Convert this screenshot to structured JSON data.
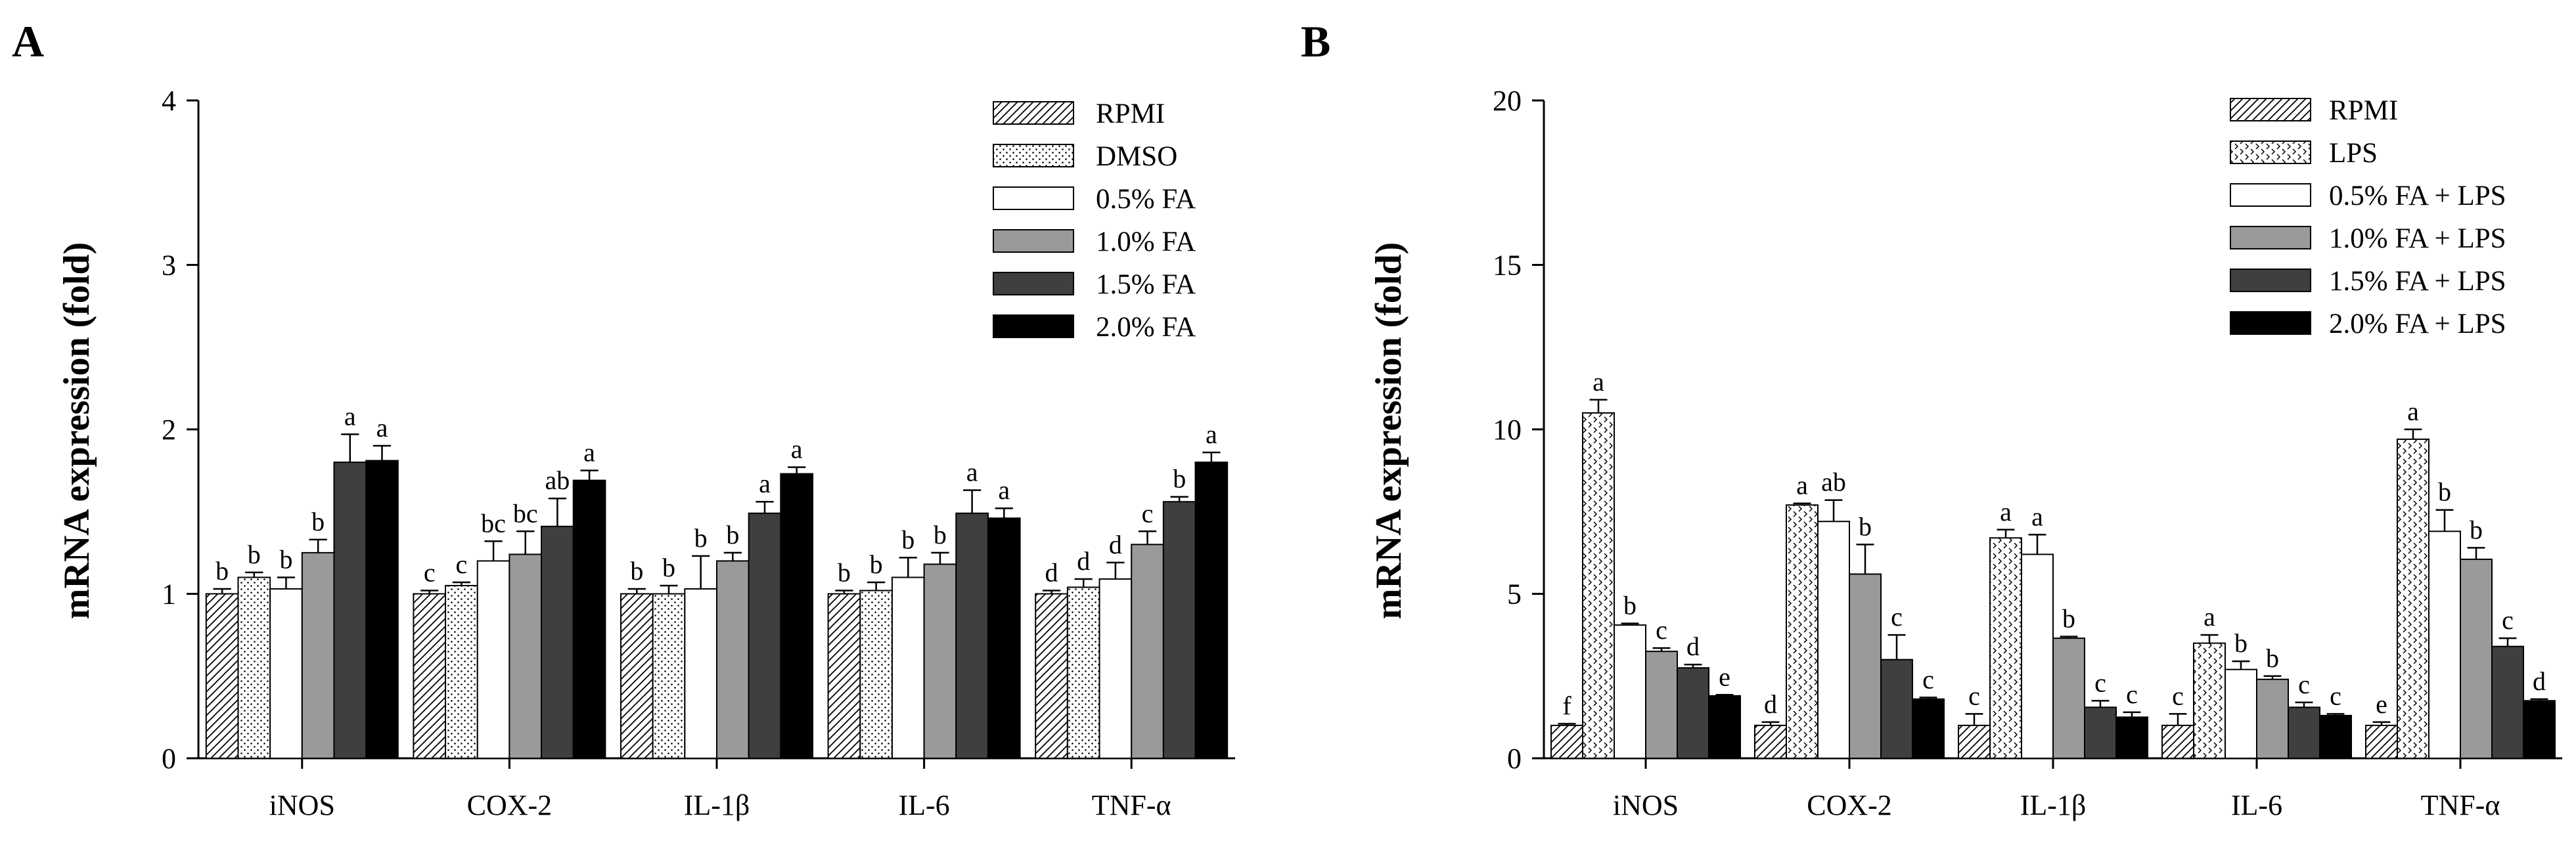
{
  "chart_data": [
    {
      "type": "bar",
      "panel": "A",
      "ylabel": "mRNA expression (fold)",
      "xlabel": "",
      "ylim": [
        0,
        4
      ],
      "yticks": [
        "0",
        "1",
        "2",
        "3",
        "4"
      ],
      "categories": [
        "iNOS",
        "COX-2",
        "IL-1β",
        "IL-6",
        "TNF-α"
      ],
      "legend_position": "top-right",
      "series": [
        {
          "name": "RPMI",
          "pattern": "diag",
          "values": [
            1.0,
            1.0,
            1.0,
            1.0,
            1.0
          ],
          "errors": [
            0.03,
            0.02,
            0.03,
            0.02,
            0.02
          ],
          "labels": [
            "b",
            "c",
            "b",
            "b",
            "d"
          ]
        },
        {
          "name": "DMSO",
          "pattern": "dots",
          "values": [
            1.1,
            1.05,
            1.0,
            1.02,
            1.04
          ],
          "errors": [
            0.03,
            0.02,
            0.05,
            0.05,
            0.05
          ],
          "labels": [
            "b",
            "c",
            "b",
            "b",
            "d"
          ]
        },
        {
          "name": "0.5% FA",
          "pattern": "white",
          "values": [
            1.03,
            1.2,
            1.03,
            1.1,
            1.09
          ],
          "errors": [
            0.07,
            0.12,
            0.2,
            0.12,
            0.1
          ],
          "labels": [
            "b",
            "bc",
            "b",
            "b",
            "d"
          ]
        },
        {
          "name": "1.0% FA",
          "pattern": "lightgray",
          "values": [
            1.25,
            1.24,
            1.2,
            1.18,
            1.3
          ],
          "errors": [
            0.08,
            0.14,
            0.05,
            0.07,
            0.08
          ],
          "labels": [
            "b",
            "bc",
            "b",
            "b",
            "c"
          ]
        },
        {
          "name": "1.5% FA",
          "pattern": "darkgray",
          "values": [
            1.8,
            1.41,
            1.49,
            1.49,
            1.56
          ],
          "errors": [
            0.17,
            0.17,
            0.07,
            0.14,
            0.03
          ],
          "labels": [
            "a",
            "ab",
            "a",
            "a",
            "b"
          ]
        },
        {
          "name": "2.0% FA",
          "pattern": "black",
          "values": [
            1.81,
            1.69,
            1.73,
            1.46,
            1.8
          ],
          "errors": [
            0.09,
            0.06,
            0.04,
            0.06,
            0.06
          ],
          "labels": [
            "a",
            "a",
            "a",
            "a",
            "a"
          ]
        }
      ]
    },
    {
      "type": "bar",
      "panel": "B",
      "ylabel": "mRNA expression (fold)",
      "xlabel": "",
      "ylim": [
        0,
        20
      ],
      "yticks": [
        "0",
        "5",
        "10",
        "15",
        "20"
      ],
      "categories": [
        "iNOS",
        "COX-2",
        "IL-1β",
        "IL-6",
        "TNF-α"
      ],
      "legend_position": "top-right",
      "series": [
        {
          "name": "RPMI",
          "pattern": "diag",
          "values": [
            1.0,
            1.0,
            1.0,
            1.0,
            1.0
          ],
          "errors": [
            0.05,
            0.1,
            0.35,
            0.35,
            0.1
          ],
          "labels": [
            "f",
            "d",
            "c",
            "c",
            "e"
          ]
        },
        {
          "name": "LPS",
          "pattern": "chevron",
          "values": [
            10.5,
            7.7,
            6.7,
            3.5,
            9.7
          ],
          "errors": [
            0.4,
            0.05,
            0.25,
            0.25,
            0.3
          ],
          "labels": [
            "a",
            "a",
            "a",
            "a",
            "a"
          ]
        },
        {
          "name": "0.5% FA + LPS",
          "pattern": "white",
          "values": [
            4.05,
            7.2,
            6.2,
            2.7,
            6.9
          ],
          "errors": [
            0.05,
            0.65,
            0.6,
            0.25,
            0.65
          ],
          "labels": [
            "b",
            "ab",
            "a",
            "b",
            "b"
          ]
        },
        {
          "name": "1.0% FA + LPS",
          "pattern": "lightgray",
          "values": [
            3.25,
            5.6,
            3.65,
            2.4,
            6.05
          ],
          "errors": [
            0.1,
            0.9,
            0.05,
            0.1,
            0.35
          ],
          "labels": [
            "c",
            "b",
            "b",
            "b",
            "b"
          ]
        },
        {
          "name": "1.5% FA + LPS",
          "pattern": "darkgray",
          "values": [
            2.75,
            3.0,
            1.55,
            1.55,
            3.4
          ],
          "errors": [
            0.1,
            0.75,
            0.2,
            0.15,
            0.25
          ],
          "labels": [
            "d",
            "c",
            "c",
            "c",
            "c"
          ]
        },
        {
          "name": "2.0% FA + LPS",
          "pattern": "black",
          "values": [
            1.9,
            1.8,
            1.25,
            1.3,
            1.75
          ],
          "errors": [
            0.03,
            0.05,
            0.15,
            0.05,
            0.05
          ],
          "labels": [
            "e",
            "c",
            "c",
            "c",
            "d"
          ]
        }
      ]
    }
  ]
}
